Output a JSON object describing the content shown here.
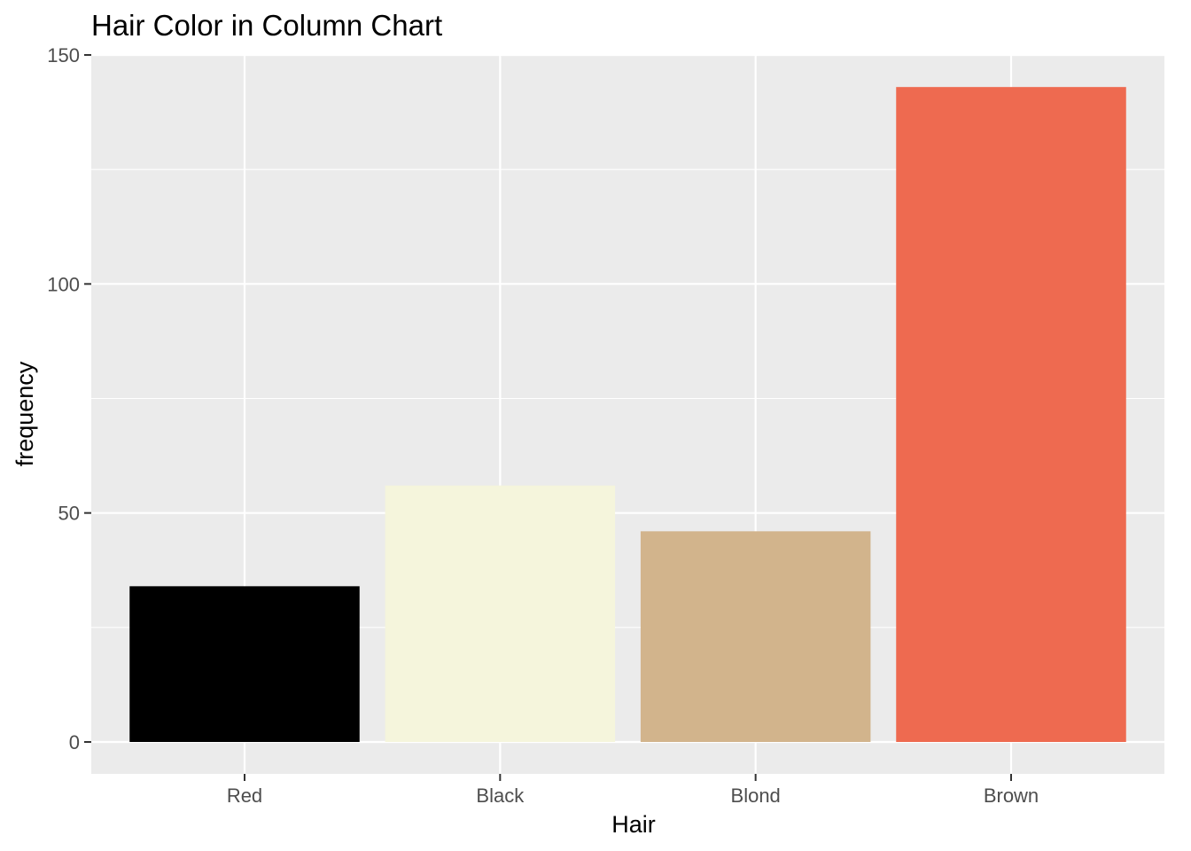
{
  "chart_data": {
    "type": "bar",
    "title": "Hair Color in Column Chart",
    "xlabel": "Hair",
    "ylabel": "frequency",
    "categories": [
      "Red",
      "Black",
      "Blond",
      "Brown"
    ],
    "values": [
      34,
      56,
      46,
      143
    ],
    "colors": [
      "#000000",
      "#F5F5DC",
      "#D2B48C",
      "#EE6A50"
    ],
    "ylim": [
      -7,
      150
    ],
    "yticks": [
      0,
      50,
      100,
      150
    ],
    "ytick_labels": [
      "0",
      "50",
      "100",
      "150"
    ],
    "grid": true,
    "legend": "none",
    "panel_background": "#EBEBEB",
    "gridline_color": "#FFFFFF",
    "tick_color": "#333333"
  }
}
